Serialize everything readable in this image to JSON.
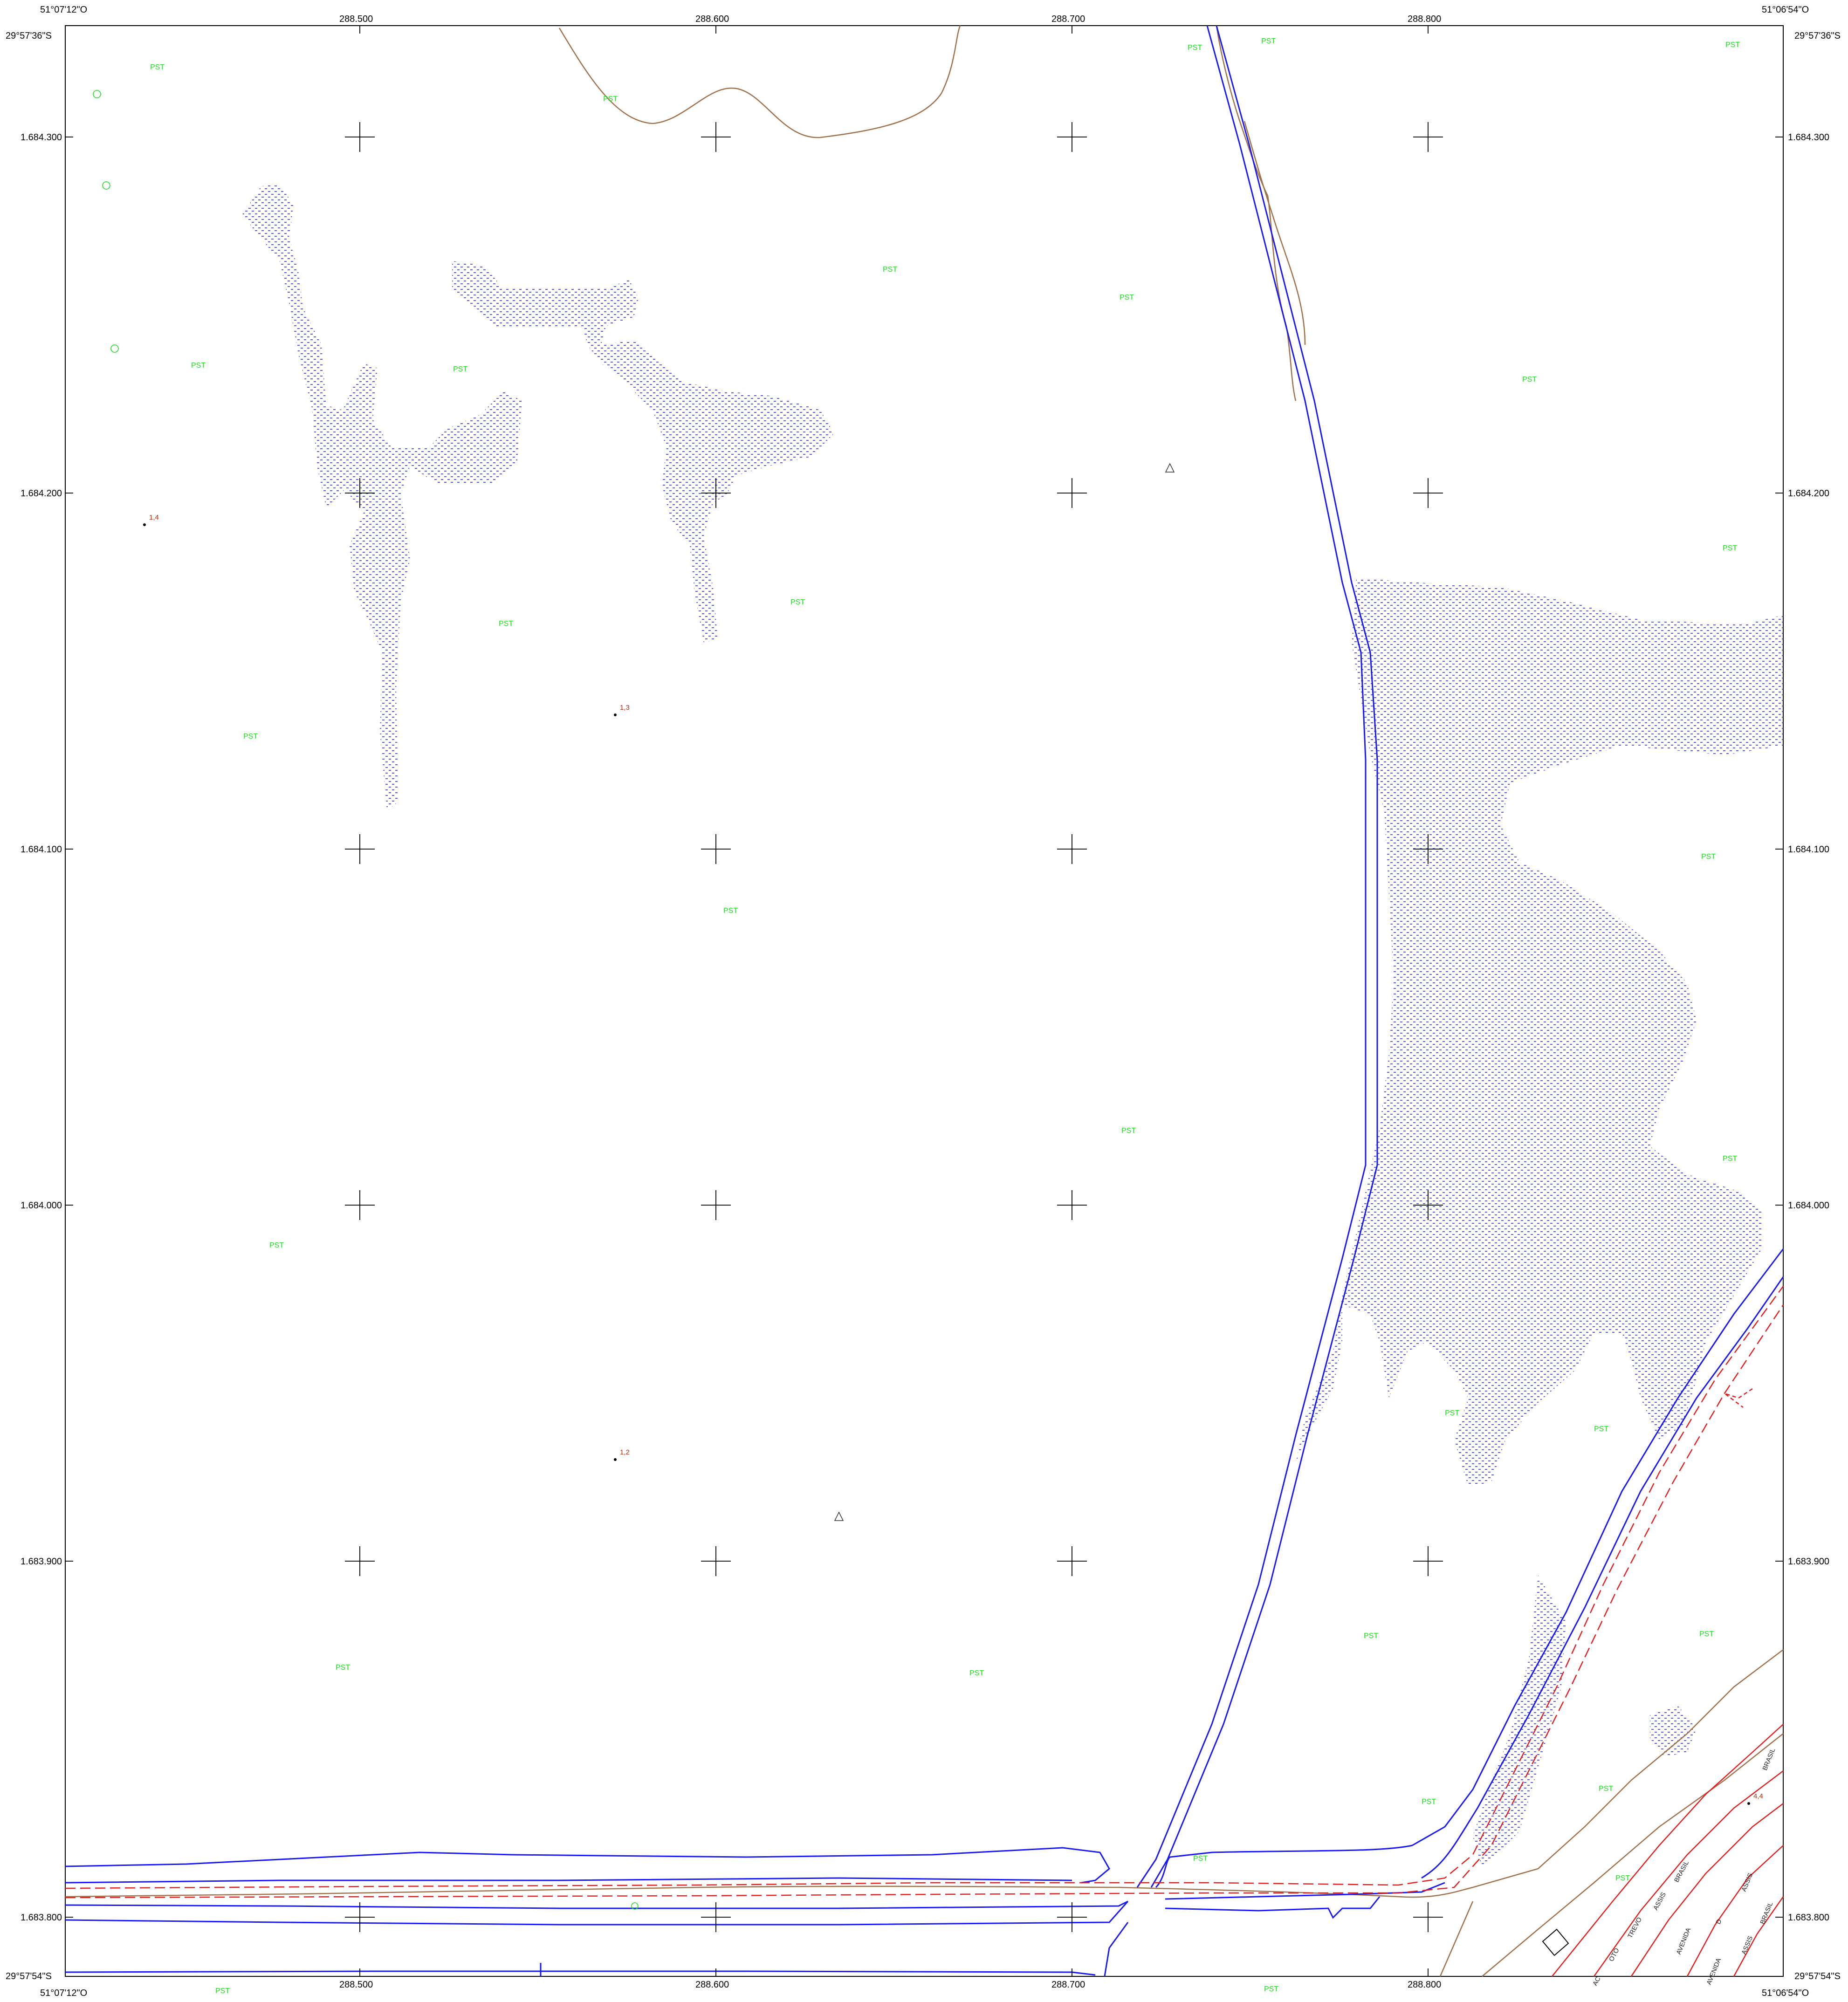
{
  "map": {
    "corners": {
      "top_left_lon": "51°07'12\"O",
      "top_right_lon": "51°06'54\"O",
      "bottom_left_lon": "51°07'12\"O",
      "bottom_right_lon": "51°06'54\"O",
      "top_left_lat": "29°57'36\"S",
      "top_right_lat": "29°57'36\"S",
      "bottom_left_lat": "29°57'54\"S",
      "bottom_right_lat": "29°57'54\"S"
    },
    "easting_ticks": [
      "288.500",
      "288.600",
      "288.700",
      "288.800"
    ],
    "northing_ticks": [
      "1.684.300",
      "1.684.200",
      "1.684.100",
      "1.684.000",
      "1.683.900",
      "1.683.800"
    ],
    "area_labels": [
      "PST",
      "PST",
      "PST",
      "PST",
      "PST",
      "PST",
      "PST",
      "PST",
      "PST",
      "PST",
      "PST",
      "PST",
      "PST",
      "PST",
      "PST",
      "PST",
      "PST",
      "PST",
      "PST",
      "PST",
      "PST",
      "PST",
      "PST",
      "PST",
      "PST",
      "PST",
      "PST",
      "PST",
      "PST",
      "PST",
      "PST"
    ],
    "spot_heights": [
      "1,4",
      "1,3",
      "1,2",
      "4,4"
    ],
    "streets": [
      "AC",
      "OTO",
      "TREVO",
      "ASSIS",
      "BRASIL",
      "AVENIDA",
      "D",
      "AVENIDA",
      "ASSIS",
      "BRASIL",
      "ASSIS",
      "BRASIL"
    ],
    "colors": {
      "water": "#1a1aee",
      "marsh": "#3333cc",
      "contour": "#a0704a",
      "road": "#e02020",
      "vegetation_label": "#22dd22",
      "grid": "#000000"
    }
  }
}
